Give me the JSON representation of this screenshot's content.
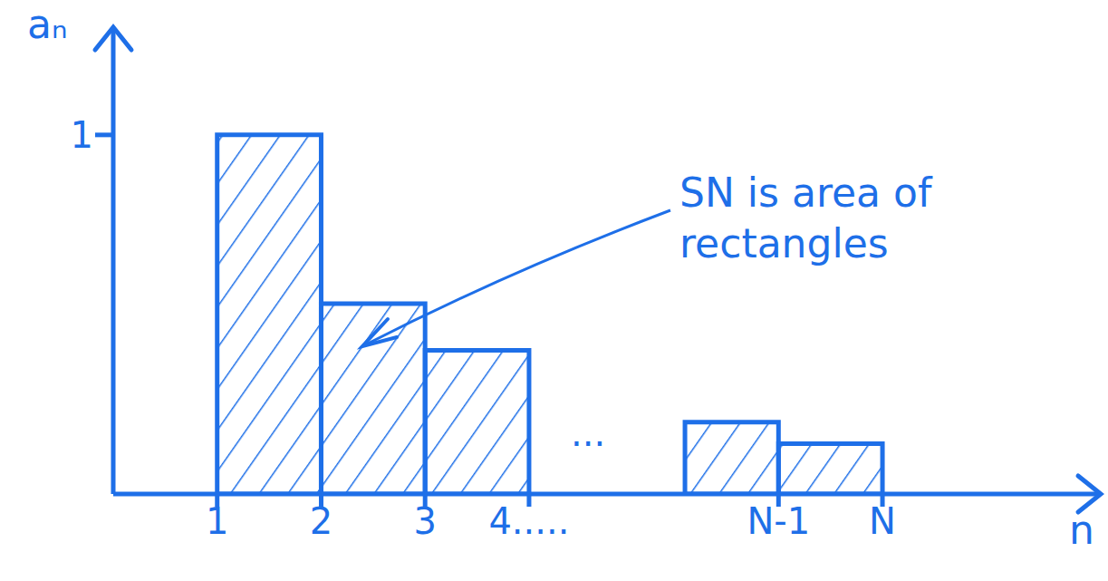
{
  "chart_data": {
    "type": "bar",
    "x_label": "n",
    "y_label": "aₙ",
    "annotations": [
      "SN is area of rectangles",
      "..."
    ],
    "bins": [
      1,
      2,
      3,
      4,
      5.5,
      6.4,
      7.4
    ],
    "values": [
      1,
      0.53,
      0.4,
      null,
      0.2,
      0.14
    ],
    "color": "#1e6fe8",
    "xlim": [
      0,
      9.5
    ],
    "ylim": [
      0,
      1.3
    ],
    "xticks": [
      1,
      2,
      3,
      {
        "value": 4,
        "label": "4....."
      },
      {
        "value": 6.4,
        "label": "N-1"
      },
      {
        "value": 7.4,
        "label": "N"
      }
    ],
    "yticks": [
      1
    ],
    "grid": false
  }
}
